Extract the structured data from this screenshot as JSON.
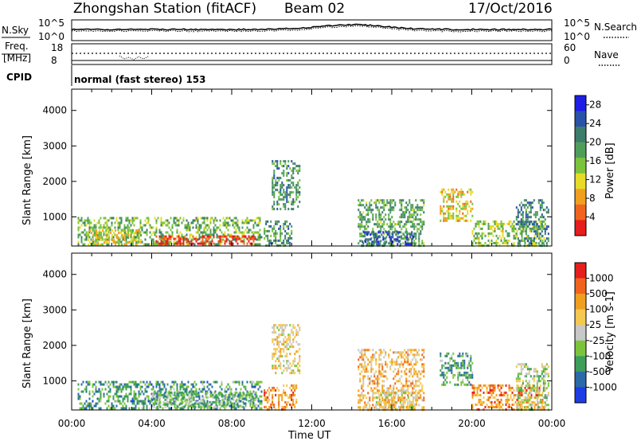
{
  "header": {
    "station": "Zhongshan Station (fitACF)",
    "beam": "Beam 02",
    "date": "17/Oct/2016"
  },
  "aux": {
    "nsky_label": "N.Sky",
    "nsearch_label": "N.Search",
    "freq_label_line1": "Freq.",
    "freq_label_line2": "[MHz]",
    "nave_label": "Nave",
    "cpid_label": "CPID",
    "cpid_text": "normal (fast stereo) 153",
    "noise_ticks_left": [
      "10^5",
      "10^0"
    ],
    "noise_ticks_right": [
      "10^5",
      "10^0"
    ],
    "freq_ticks": [
      "18",
      "8"
    ],
    "nave_ticks": [
      "60",
      "0"
    ]
  },
  "chart_data": [
    {
      "type": "heatmap",
      "panel": "power",
      "ylabel": "Slant Range [km]",
      "xlabel": "Time UT",
      "x_ticks": [
        "00:00",
        "04:00",
        "08:00",
        "12:00",
        "16:00",
        "20:00",
        "00:00"
      ],
      "xlim_hours": [
        0,
        24
      ],
      "ylim_km": [
        180,
        4600
      ],
      "y_ticks": [
        1000,
        2000,
        3000,
        4000
      ],
      "colorbar": {
        "label": "Power [dB]",
        "range": [
          0,
          30
        ],
        "ticks": [
          4,
          8,
          12,
          16,
          20,
          24,
          28
        ],
        "colors": [
          "#1e1ee6",
          "#2a52a8",
          "#3c7c6a",
          "#4e9e5a",
          "#7cc43c",
          "#e6dc28",
          "#f0a01e",
          "#f0641e",
          "#e61e1e"
        ]
      },
      "regions": [
        {
          "t0": 0.3,
          "t1": 9.5,
          "r0": 200,
          "r1": 1000,
          "level": 0.45
        },
        {
          "t0": 4.2,
          "t1": 9.2,
          "r0": 250,
          "r1": 480,
          "level": 0.93
        },
        {
          "t0": 0.8,
          "t1": 3.5,
          "r0": 200,
          "r1": 650,
          "level": 0.6
        },
        {
          "t0": 10.0,
          "t1": 11.4,
          "r0": 1200,
          "r1": 2600,
          "level": 0.35
        },
        {
          "t0": 9.6,
          "t1": 11.0,
          "r0": 200,
          "r1": 900,
          "level": 0.35
        },
        {
          "t0": 14.3,
          "t1": 17.6,
          "r0": 200,
          "r1": 1500,
          "level": 0.4
        },
        {
          "t0": 14.5,
          "t1": 17.2,
          "r0": 200,
          "r1": 600,
          "level": 0.2
        },
        {
          "t0": 18.4,
          "t1": 20.0,
          "r0": 900,
          "r1": 1800,
          "level": 0.65
        },
        {
          "t0": 20.0,
          "t1": 23.6,
          "r0": 200,
          "r1": 900,
          "level": 0.5
        },
        {
          "t0": 22.2,
          "t1": 23.8,
          "r0": 200,
          "r1": 1500,
          "level": 0.3
        }
      ]
    },
    {
      "type": "heatmap",
      "panel": "velocity",
      "ylabel": "Slant Range [km]",
      "xlabel": "Time UT",
      "x_ticks": [
        "00:00",
        "04:00",
        "08:00",
        "12:00",
        "16:00",
        "20:00",
        "00:00"
      ],
      "xlim_hours": [
        0,
        24
      ],
      "ylim_km": [
        180,
        4600
      ],
      "y_ticks": [
        1000,
        2000,
        3000,
        4000
      ],
      "colorbar": {
        "label": "Velocity [m s-1]",
        "range": [
          -1000,
          1000
        ],
        "ticks": [
          "1000",
          "500",
          "100",
          "25",
          "-25",
          "-100",
          "-500",
          "-1000"
        ],
        "colors": [
          "#e61e1e",
          "#f0641e",
          "#f0a01e",
          "#f5c850",
          "#c8c8c8",
          "#7cc43c",
          "#3c9e5a",
          "#2a6aa8",
          "#1e3ce6"
        ]
      },
      "regions": [
        {
          "t0": 0.3,
          "t1": 9.5,
          "r0": 200,
          "r1": 1000,
          "level": 0.72
        },
        {
          "t0": 4.0,
          "t1": 9.2,
          "r0": 250,
          "r1": 700,
          "level": 0.62
        },
        {
          "t0": 10.0,
          "t1": 11.4,
          "r0": 1200,
          "r1": 2600,
          "level": 0.45
        },
        {
          "t0": 9.6,
          "t1": 11.2,
          "r0": 200,
          "r1": 900,
          "level": 0.25
        },
        {
          "t0": 14.3,
          "t1": 17.6,
          "r0": 200,
          "r1": 1900,
          "level": 0.35
        },
        {
          "t0": 15.2,
          "t1": 17.2,
          "r0": 200,
          "r1": 700,
          "level": 0.45
        },
        {
          "t0": 18.4,
          "t1": 20.0,
          "r0": 900,
          "r1": 1800,
          "level": 0.7
        },
        {
          "t0": 20.0,
          "t1": 23.6,
          "r0": 200,
          "r1": 900,
          "level": 0.25
        },
        {
          "t0": 22.2,
          "t1": 23.8,
          "r0": 200,
          "r1": 1500,
          "level": 0.55
        }
      ]
    }
  ]
}
